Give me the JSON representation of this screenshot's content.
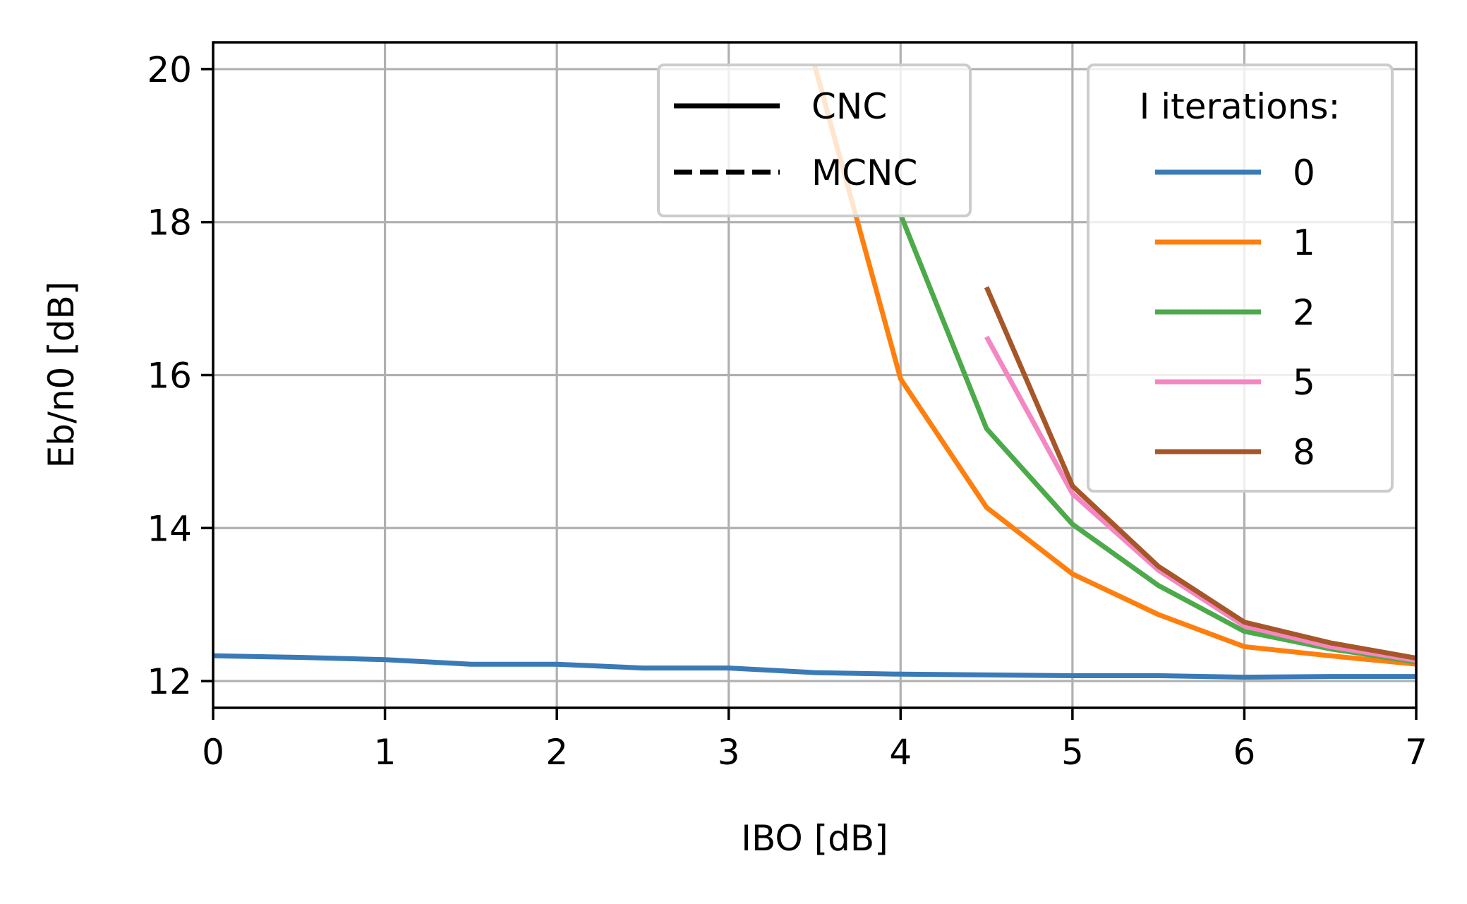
{
  "chart_data": {
    "type": "line",
    "title": "",
    "xlabel": "IBO [dB]",
    "ylabel": "Eb/n0 [dB]",
    "xlim": [
      0,
      7
    ],
    "ylim": [
      11.65,
      20.35
    ],
    "x_ticks": [
      "0",
      "1",
      "2",
      "3",
      "4",
      "5",
      "6",
      "7"
    ],
    "y_ticks": [
      "12",
      "14",
      "16",
      "18",
      "20"
    ],
    "grid": true,
    "style_legend": {
      "placement": "top-center",
      "entries": [
        {
          "label": "CNC",
          "linestyle": "solid"
        },
        {
          "label": "MCNC",
          "linestyle": "dashed"
        }
      ]
    },
    "iteration_legend": {
      "title": "I iterations:",
      "placement": "top-right",
      "entries": [
        "0",
        "1",
        "2",
        "5",
        "8"
      ]
    },
    "series": [
      {
        "name": "0",
        "color": "#3a7ab7",
        "linestyle": "solid",
        "x": [
          0,
          0.5,
          1,
          1.5,
          2,
          2.5,
          3,
          3.5,
          4,
          4.5,
          5,
          5.5,
          6,
          6.5,
          7
        ],
        "y": [
          12.33,
          12.31,
          12.28,
          12.22,
          12.22,
          12.17,
          12.17,
          12.11,
          12.09,
          12.08,
          12.07,
          12.07,
          12.05,
          12.06,
          12.06
        ]
      },
      {
        "name": "1",
        "color": "#ff7f0e",
        "linestyle": "solid",
        "x": [
          3.5,
          4,
          4.5,
          5,
          5.5,
          6,
          6.5,
          7
        ],
        "y": [
          20.05,
          15.95,
          14.27,
          13.4,
          12.87,
          12.45,
          12.33,
          12.22
        ]
      },
      {
        "name": "2",
        "color": "#4caa4a",
        "linestyle": "solid",
        "x": [
          4,
          4.5,
          5,
          5.5,
          6,
          6.5,
          7
        ],
        "y": [
          18.1,
          15.3,
          14.05,
          13.25,
          12.65,
          12.42,
          12.25
        ]
      },
      {
        "name": "5",
        "color": "#f487c2",
        "linestyle": "solid",
        "x": [
          4.5,
          5,
          5.5,
          6,
          6.5,
          7
        ],
        "y": [
          16.5,
          14.45,
          13.45,
          12.72,
          12.45,
          12.27
        ]
      },
      {
        "name": "8",
        "color": "#a65628",
        "linestyle": "solid",
        "x": [
          4.5,
          5,
          5.5,
          6,
          6.5,
          7
        ],
        "y": [
          17.15,
          14.55,
          13.5,
          12.77,
          12.5,
          12.3
        ]
      }
    ]
  }
}
